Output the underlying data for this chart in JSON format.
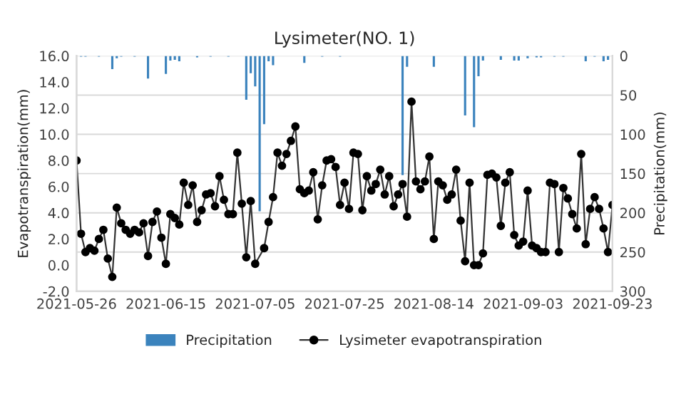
{
  "chart_data": {
    "type": "line",
    "title": "Lysimeter(NO. 1)",
    "ylabel": "Evapotranspiration(mm)",
    "y2label": "Precipitation(mm)",
    "xlim": [
      "2021-05-26",
      "2021-09-23"
    ],
    "xticks": [
      "2021-05-26",
      "2021-06-15",
      "2021-07-05",
      "2021-07-25",
      "2021-08-14",
      "2021-09-03",
      "2021-09-23"
    ],
    "ylim": [
      -2,
      16
    ],
    "yticks": [
      {
        "value": -2,
        "label": "-2.0"
      },
      {
        "value": 0,
        "label": "0.0"
      },
      {
        "value": 2,
        "label": "2.0"
      },
      {
        "value": 4,
        "label": "4.0"
      },
      {
        "value": 6,
        "label": "6.0"
      },
      {
        "value": 8,
        "label": "8.0"
      },
      {
        "value": 10,
        "label": "10.0"
      },
      {
        "value": 12,
        "label": "12.0"
      },
      {
        "value": 14,
        "label": "14.0"
      },
      {
        "value": 16,
        "label": "16.0"
      }
    ],
    "y2lim": [
      300,
      0
    ],
    "y2ticks": [
      0,
      50,
      100,
      150,
      200,
      250,
      300
    ],
    "grid": true,
    "legend": "bottom",
    "marker": "circle",
    "series": [
      {
        "name": "Precipitation",
        "type": "bar",
        "axis": "y2",
        "color": "#3b83bd",
        "x": [
          "2021-05-27",
          "2021-05-28",
          "2021-05-31",
          "2021-06-03",
          "2021-06-04",
          "2021-06-05",
          "2021-06-08",
          "2021-06-11",
          "2021-06-15",
          "2021-06-16",
          "2021-06-17",
          "2021-06-18",
          "2021-06-22",
          "2021-06-25",
          "2021-06-29",
          "2021-07-03",
          "2021-07-04",
          "2021-07-05",
          "2021-07-06",
          "2021-07-07",
          "2021-07-08",
          "2021-07-09",
          "2021-07-16",
          "2021-07-20",
          "2021-07-24",
          "2021-08-07",
          "2021-08-08",
          "2021-08-14",
          "2021-08-21",
          "2021-08-23",
          "2021-08-24",
          "2021-08-25",
          "2021-08-29",
          "2021-09-01",
          "2021-09-02",
          "2021-09-04",
          "2021-09-06",
          "2021-09-07",
          "2021-09-10",
          "2021-09-12",
          "2021-09-17",
          "2021-09-19",
          "2021-09-21",
          "2021-09-22"
        ],
        "values": [
          1,
          1,
          1,
          17,
          3,
          1,
          1,
          29,
          23,
          6,
          5,
          7,
          2,
          1,
          1,
          56,
          22,
          39,
          198,
          87,
          7,
          12,
          9,
          1,
          1,
          152,
          14,
          14,
          76,
          91,
          26,
          6,
          5,
          6,
          6,
          3,
          2,
          2,
          1,
          1,
          7,
          1,
          7,
          5
        ]
      },
      {
        "name": "Lysimeter evapotranspiration",
        "color": "#333333",
        "x": [
          "2021-05-26",
          "2021-05-27",
          "2021-05-28",
          "2021-05-29",
          "2021-05-30",
          "2021-05-31",
          "2021-06-01",
          "2021-06-02",
          "2021-06-03",
          "2021-06-04",
          "2021-06-05",
          "2021-06-06",
          "2021-06-07",
          "2021-06-08",
          "2021-06-09",
          "2021-06-10",
          "2021-06-11",
          "2021-06-12",
          "2021-06-13",
          "2021-06-14",
          "2021-06-15",
          "2021-06-16",
          "2021-06-17",
          "2021-06-18",
          "2021-06-19",
          "2021-06-20",
          "2021-06-21",
          "2021-06-22",
          "2021-06-23",
          "2021-06-24",
          "2021-06-25",
          "2021-06-26",
          "2021-06-27",
          "2021-06-28",
          "2021-06-29",
          "2021-06-30",
          "2021-07-01",
          "2021-07-02",
          "2021-07-03",
          "2021-07-04",
          "2021-07-05",
          "2021-07-07",
          "2021-07-08",
          "2021-07-09",
          "2021-07-10",
          "2021-07-11",
          "2021-07-12",
          "2021-07-13",
          "2021-07-14",
          "2021-07-15",
          "2021-07-16",
          "2021-07-17",
          "2021-07-18",
          "2021-07-19",
          "2021-07-20",
          "2021-07-21",
          "2021-07-22",
          "2021-07-23",
          "2021-07-24",
          "2021-07-25",
          "2021-07-26",
          "2021-07-27",
          "2021-07-28",
          "2021-07-29",
          "2021-07-30",
          "2021-07-31",
          "2021-08-01",
          "2021-08-02",
          "2021-08-03",
          "2021-08-04",
          "2021-08-05",
          "2021-08-06",
          "2021-08-07",
          "2021-08-08",
          "2021-08-09",
          "2021-08-10",
          "2021-08-11",
          "2021-08-12",
          "2021-08-13",
          "2021-08-14",
          "2021-08-15",
          "2021-08-16",
          "2021-08-17",
          "2021-08-18",
          "2021-08-19",
          "2021-08-20",
          "2021-08-21",
          "2021-08-22",
          "2021-08-23",
          "2021-08-24",
          "2021-08-25",
          "2021-08-26",
          "2021-08-27",
          "2021-08-28",
          "2021-08-29",
          "2021-08-30",
          "2021-08-31",
          "2021-09-01",
          "2021-09-02",
          "2021-09-03",
          "2021-09-04",
          "2021-09-05",
          "2021-09-06",
          "2021-09-07",
          "2021-09-08",
          "2021-09-09",
          "2021-09-10",
          "2021-09-11",
          "2021-09-12",
          "2021-09-13",
          "2021-09-14",
          "2021-09-15",
          "2021-09-16",
          "2021-09-17",
          "2021-09-18",
          "2021-09-19",
          "2021-09-20",
          "2021-09-21",
          "2021-09-22",
          "2021-09-23"
        ],
        "values": [
          8.0,
          2.4,
          1.0,
          1.3,
          1.1,
          2.0,
          2.7,
          0.5,
          -0.9,
          4.4,
          3.2,
          2.7,
          2.4,
          2.7,
          2.5,
          3.2,
          0.7,
          3.3,
          4.1,
          2.1,
          0.1,
          3.9,
          3.6,
          3.1,
          6.3,
          4.6,
          6.1,
          3.3,
          4.2,
          5.4,
          5.5,
          4.5,
          6.8,
          5.0,
          3.9,
          3.9,
          8.6,
          4.7,
          0.6,
          4.9,
          0.1,
          1.3,
          3.3,
          5.2,
          8.6,
          7.6,
          8.5,
          9.5,
          10.6,
          5.8,
          5.5,
          5.7,
          7.1,
          3.5,
          6.1,
          8.0,
          8.1,
          7.5,
          4.6,
          6.3,
          4.3,
          8.6,
          8.5,
          4.2,
          6.8,
          5.7,
          6.2,
          7.3,
          5.4,
          6.8,
          4.5,
          5.4,
          6.2,
          3.7,
          12.5,
          6.4,
          5.8,
          6.4,
          8.3,
          2.0,
          6.4,
          6.1,
          5.0,
          5.4,
          7.3,
          3.4,
          0.3,
          6.3,
          0.0,
          0.0,
          0.9,
          6.9,
          7.0,
          6.7,
          3.0,
          6.3,
          7.1,
          2.3,
          1.5,
          1.8,
          5.7,
          1.5,
          1.3,
          1.0,
          1.0,
          6.3,
          6.2,
          1.0,
          5.9,
          5.1,
          3.9,
          2.8,
          8.5,
          1.6,
          4.3,
          5.2,
          4.3,
          2.8,
          1.0,
          4.6
        ]
      }
    ]
  }
}
